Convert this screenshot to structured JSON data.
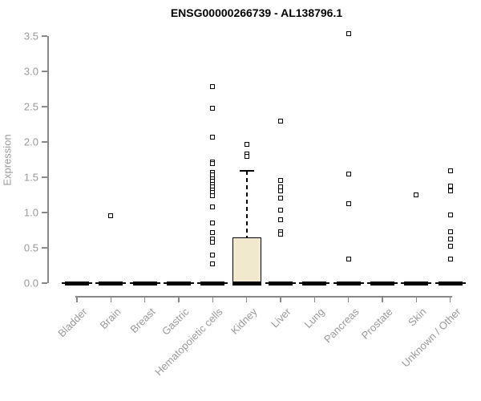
{
  "chart_data": {
    "type": "boxplot",
    "title": "ENSG00000266739 - AL138796.1",
    "xlabel": "",
    "ylabel": "Expression",
    "ylim": [
      0.0,
      3.5
    ],
    "ytick_labels": [
      "0.0",
      "0.5",
      "1.0",
      "1.5",
      "2.0",
      "2.5",
      "3.0",
      "3.5"
    ],
    "ytick_values": [
      0.0,
      0.5,
      1.0,
      1.5,
      2.0,
      2.5,
      3.0,
      3.5
    ],
    "grid": "off",
    "legend": "none",
    "categories": [
      "Bladder",
      "Brain",
      "Breast",
      "Gastric",
      "Hematopoietic cells",
      "Kidney",
      "Liver",
      "Lung",
      "Pancreas",
      "Prostate",
      "Skin",
      "Unknown / Other"
    ],
    "boxes": [
      {
        "category": "Bladder",
        "median": 0,
        "q1": 0,
        "q3": 0,
        "whisker_low": 0,
        "whisker_high": 0,
        "outliers": []
      },
      {
        "category": "Brain",
        "median": 0,
        "q1": 0,
        "q3": 0,
        "whisker_low": 0,
        "whisker_high": 0,
        "outliers": [
          0.95
        ]
      },
      {
        "category": "Breast",
        "median": 0,
        "q1": 0,
        "q3": 0,
        "whisker_low": 0,
        "whisker_high": 0,
        "outliers": []
      },
      {
        "category": "Gastric",
        "median": 0,
        "q1": 0,
        "q3": 0,
        "whisker_low": 0,
        "whisker_high": 0,
        "outliers": []
      },
      {
        "category": "Hematopoietic cells",
        "median": 0,
        "q1": 0,
        "q3": 0,
        "whisker_low": 0,
        "whisker_high": 0,
        "outliers": [
          2.78,
          2.48,
          2.07,
          1.72,
          1.69,
          1.57,
          1.53,
          1.48,
          1.44,
          1.4,
          1.36,
          1.32,
          1.28,
          1.24,
          1.08,
          0.85,
          0.72,
          0.62,
          0.58,
          0.4,
          0.27
        ]
      },
      {
        "category": "Kidney",
        "median": 0,
        "q1": 0,
        "q3": 0.65,
        "whisker_low": 0,
        "whisker_high": 1.59,
        "outliers": [
          1.97,
          1.83,
          1.8
        ]
      },
      {
        "category": "Liver",
        "median": 0,
        "q1": 0,
        "q3": 0,
        "whisker_low": 0,
        "whisker_high": 0,
        "outliers": [
          2.3,
          1.45,
          1.36,
          1.31,
          1.2,
          1.03,
          0.9,
          0.73,
          0.69
        ]
      },
      {
        "category": "Lung",
        "median": 0,
        "q1": 0,
        "q3": 0,
        "whisker_low": 0,
        "whisker_high": 0,
        "outliers": []
      },
      {
        "category": "Pancreas",
        "median": 0,
        "q1": 0,
        "q3": 0,
        "whisker_low": 0,
        "whisker_high": 0,
        "outliers": [
          3.53,
          1.55,
          1.12,
          0.34
        ]
      },
      {
        "category": "Prostate",
        "median": 0,
        "q1": 0,
        "q3": 0,
        "whisker_low": 0,
        "whisker_high": 0,
        "outliers": []
      },
      {
        "category": "Skin",
        "median": 0,
        "q1": 0,
        "q3": 0,
        "whisker_low": 0,
        "whisker_high": 0,
        "outliers": [
          1.25
        ]
      },
      {
        "category": "Unknown / Other",
        "median": 0,
        "q1": 0,
        "q3": 0,
        "whisker_low": 0,
        "whisker_high": 0,
        "outliers": [
          1.59,
          1.38,
          1.31,
          0.97,
          0.73,
          0.63,
          0.52,
          0.34
        ]
      }
    ],
    "colors": {
      "box_fill": "#f0e9ce",
      "box_border": "#000000",
      "marker": "#000000",
      "axis_line": "#888888",
      "tick_label": "#999999",
      "title": "#000000",
      "background": "#ffffff"
    }
  }
}
